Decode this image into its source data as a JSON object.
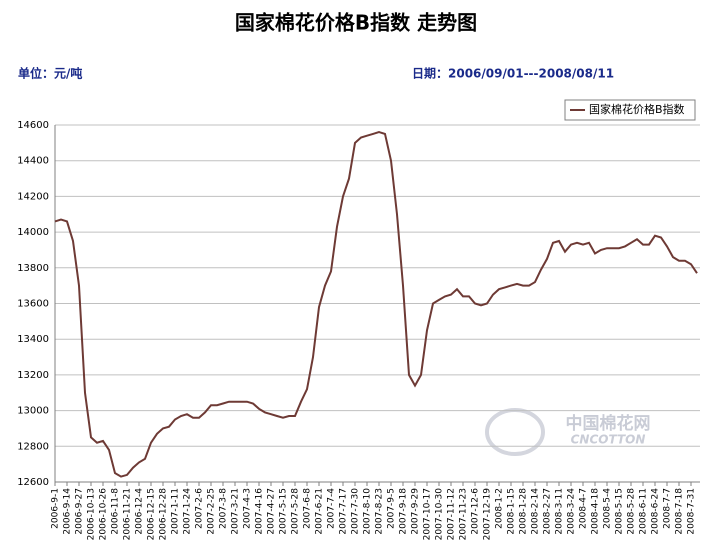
{
  "chart_data": {
    "type": "line",
    "title": "国家棉花价格B指数 走势图",
    "subtitle": "单位：元/吨",
    "date_range": "日期：2006/09/01---2008/08/11",
    "watermark": [
      "中国棉花网",
      "CNCOTTON"
    ],
    "categories": [
      "2006-9-1",
      null,
      "2006-9-14",
      null,
      "2006-9-27",
      null,
      "2006-10-13",
      null,
      "2006-10-26",
      null,
      "2006-11-8",
      null,
      "2006-11-21",
      null,
      "2006-12-4",
      null,
      "2006-12-15",
      null,
      "2006-12-28",
      null,
      "2007-1-11",
      null,
      "2007-1-24",
      null,
      "2007-2-6",
      null,
      "2007-2-25",
      null,
      "2007-3-8",
      null,
      "2007-3-21",
      null,
      "2007-4-3",
      null,
      "2007-4-16",
      null,
      "2007-4-27",
      null,
      "2007-5-15",
      null,
      "2007-5-28",
      null,
      "2007-6-8",
      null,
      "2007-6-21",
      null,
      "2007-7-4",
      null,
      "2007-7-17",
      null,
      "2007-7-30",
      null,
      "2007-8-10",
      null,
      "2007-8-23",
      null,
      "2007-9-5",
      null,
      "2007-9-18",
      null,
      "2007-9-29",
      null,
      "2007-10-17",
      null,
      "2007-10-30",
      null,
      "2007-11-12",
      null,
      "2007-11-23",
      null,
      "2007-12-6",
      null,
      "2007-12-19",
      null,
      "2008-1-2",
      null,
      "2008-1-15",
      null,
      "2008-1-28",
      null,
      "2008-2-14",
      null,
      "2008-2-27",
      null,
      "2008-3-11",
      null,
      "2008-3-24",
      null,
      "2008-4-7",
      null,
      "2008-4-18",
      null,
      "2008-5-4",
      null,
      "2008-5-15",
      null,
      "2008-5-28",
      null,
      "2008-6-11",
      null,
      "2008-6-24",
      null,
      "2008-7-7",
      null,
      "2008-7-18",
      null,
      "2008-7-31",
      null
    ],
    "series": [
      {
        "name": "国家棉花价格B指数",
        "color": "#6e3a35",
        "values": [
          14060,
          14070,
          14060,
          13950,
          13700,
          13100,
          12850,
          12820,
          12830,
          12780,
          12650,
          12630,
          12640,
          12680,
          12710,
          12730,
          12820,
          12870,
          12900,
          12910,
          12950,
          12970,
          12980,
          12960,
          12960,
          12990,
          13030,
          13030,
          13040,
          13050,
          13050,
          13050,
          13050,
          13040,
          13010,
          12990,
          12980,
          12970,
          12960,
          12970,
          12970,
          13050,
          13120,
          13300,
          13580,
          13700,
          13780,
          14030,
          14200,
          14300,
          14500,
          14530,
          14540,
          14550,
          14560,
          14550,
          14400,
          14100,
          13700,
          13200,
          13140,
          13200,
          13450,
          13600,
          13620,
          13640,
          13650,
          13680,
          13640,
          13640,
          13600,
          13590,
          13600,
          13650,
          13680,
          13690,
          13700,
          13710,
          13700,
          13700,
          13720,
          13790,
          13850,
          13940,
          13950,
          13890,
          13930,
          13940,
          13930,
          13940,
          13880,
          13900,
          13910,
          13910,
          13910,
          13920,
          13940,
          13960,
          13930,
          13930,
          13980,
          13970,
          13920,
          13860,
          13840,
          13840,
          13820,
          13770
        ]
      }
    ],
    "ylim": [
      12600,
      14600
    ],
    "yticks": [
      12600,
      12800,
      13000,
      13200,
      13400,
      13600,
      13800,
      14000,
      14200,
      14400,
      14600
    ],
    "grid": true,
    "legend": "upper right"
  }
}
